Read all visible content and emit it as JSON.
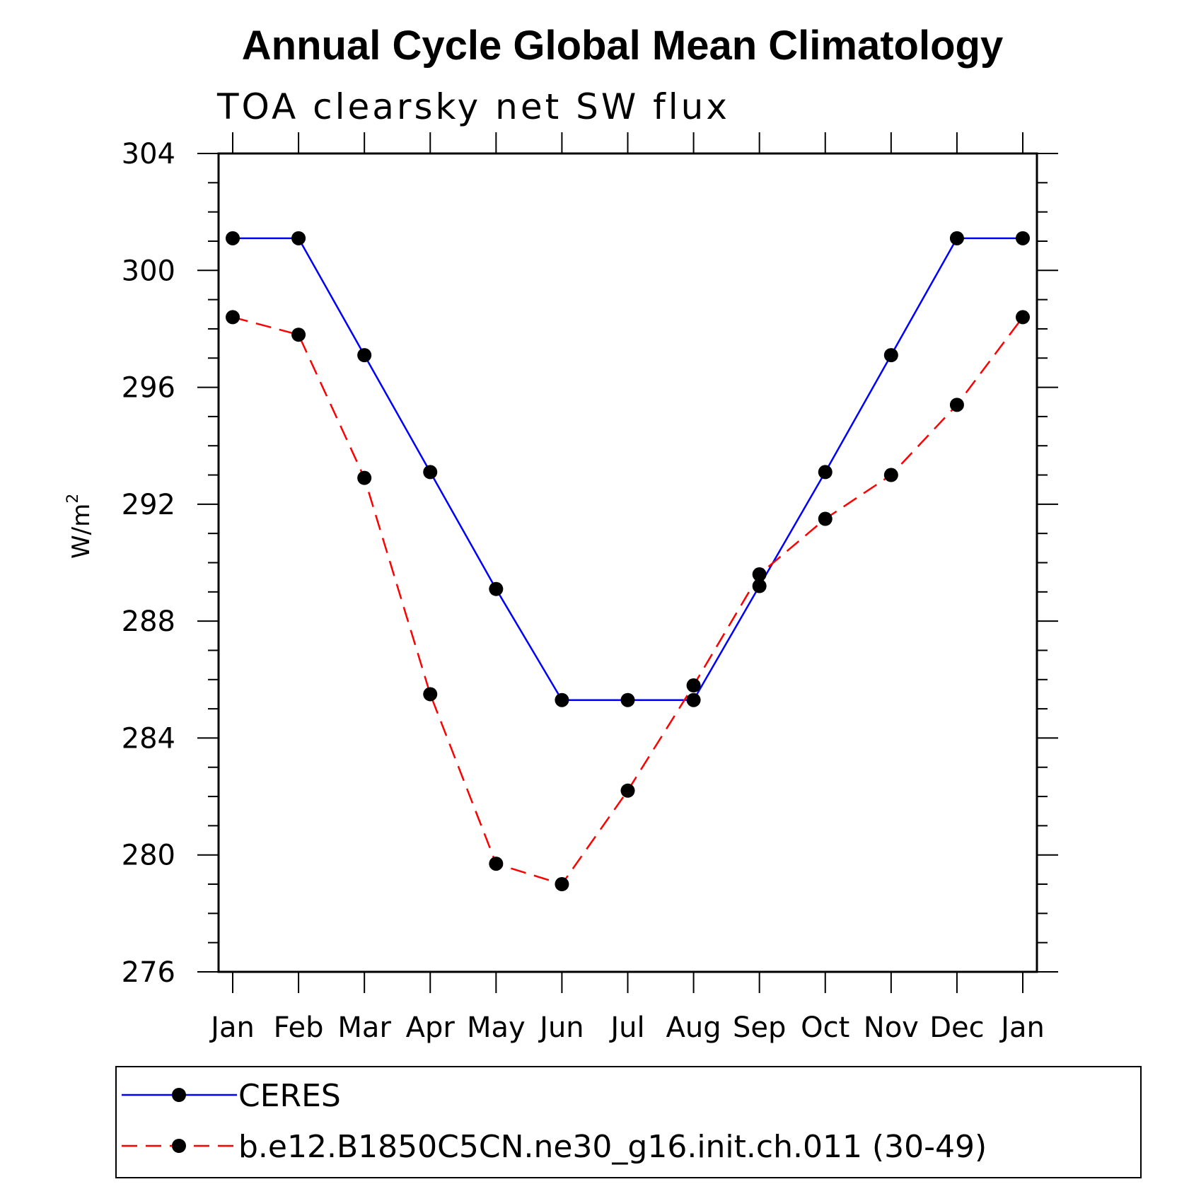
{
  "chart_data": {
    "type": "line",
    "title": "Annual Cycle Global Mean Climatology",
    "subtitle": "TOA clearsky net SW flux",
    "ylabel_base": "W/m",
    "ylabel_sup": "2",
    "ylim": [
      276,
      304
    ],
    "yticks": [
      276,
      280,
      284,
      288,
      292,
      296,
      300,
      304
    ],
    "categories": [
      "Jan",
      "Feb",
      "Mar",
      "Apr",
      "May",
      "Jun",
      "Jul",
      "Aug",
      "Sep",
      "Oct",
      "Nov",
      "Dec",
      "Jan"
    ],
    "series": [
      {
        "name": "CERES",
        "color": "#0000ff",
        "style": "solid",
        "marker": "filled-circle",
        "values": [
          301.1,
          301.1,
          297.1,
          293.1,
          289.1,
          285.3,
          285.3,
          285.3,
          289.2,
          293.1,
          297.1,
          301.1,
          301.1
        ]
      },
      {
        "name": "b.e12.B1850C5CN.ne30_g16.init.ch.011 (30-49)",
        "color": "#ff0000",
        "style": "dashed",
        "marker": "filled-circle",
        "values": [
          298.4,
          297.8,
          292.9,
          285.5,
          279.7,
          279.0,
          282.2,
          285.8,
          289.6,
          291.5,
          293.0,
          295.4,
          298.4
        ]
      }
    ],
    "legend_position": "bottom"
  }
}
